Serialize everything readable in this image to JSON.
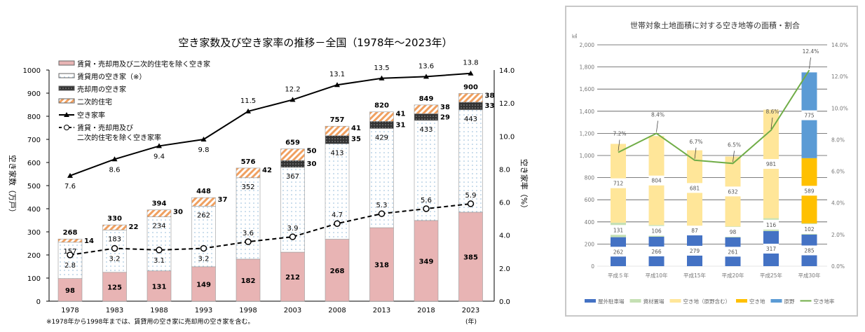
{
  "chart_data": [
    {
      "type": "bar",
      "title": "空き家数及び空き家率の推移－全国（1978年～2023年）",
      "ylabel": "空き家数（万戸）",
      "y2label": "空き家率（%）",
      "xunit": "(年)",
      "footnote": "※1978年から1998年までは、賃貸用の空き家に売却用の空き家を含む。",
      "ylim": [
        0,
        1000
      ],
      "yticks": [
        "0",
        "100",
        "200",
        "300",
        "400",
        "500",
        "600",
        "700",
        "800",
        "900",
        "1000"
      ],
      "y2lim": [
        0,
        14
      ],
      "y2ticks": [
        "0.0",
        "2.0",
        "4.0",
        "6.0",
        "8.0",
        "10.0",
        "12.0",
        "14.0"
      ],
      "categories": [
        "1978",
        "1983",
        "1988",
        "1993",
        "1998",
        "2003",
        "2008",
        "2013",
        "2018",
        "2023"
      ],
      "series": [
        {
          "name": "賃貸・売却用及び二次的住宅を除く空き家",
          "kind": "bar",
          "color": "#e8b4b4",
          "values": [
            98,
            125,
            131,
            149,
            182,
            212,
            268,
            318,
            349,
            385
          ]
        },
        {
          "name": "賃貸用の空き家（※）",
          "kind": "bar",
          "color": "#ffffff",
          "values": [
            157,
            183,
            234,
            262,
            352,
            367,
            413,
            429,
            433,
            443
          ]
        },
        {
          "name": "売却用の空き家",
          "kind": "bar",
          "color": "#444444",
          "values": [
            null,
            null,
            null,
            null,
            null,
            30,
            35,
            31,
            29,
            33
          ]
        },
        {
          "name": "二次的住宅",
          "kind": "bar",
          "color": "#f0a060",
          "values": [
            14,
            22,
            30,
            37,
            42,
            50,
            41,
            41,
            38,
            38
          ]
        },
        {
          "name": "空き家率",
          "kind": "line",
          "axis": "right",
          "values": [
            7.6,
            8.6,
            9.4,
            9.8,
            11.5,
            12.2,
            13.1,
            13.5,
            13.6,
            13.8
          ]
        },
        {
          "name": "賃貸・売却用及び\n二次的住宅を除く空き家率",
          "kind": "line-dashed",
          "axis": "right",
          "values": [
            2.8,
            3.2,
            3.1,
            3.2,
            3.6,
            3.9,
            4.7,
            5.3,
            5.6,
            5.9
          ]
        }
      ],
      "totals": [
        268,
        330,
        394,
        448,
        576,
        659,
        757,
        820,
        849,
        900
      ],
      "legend": "top-left"
    },
    {
      "type": "bar",
      "title": "世帯対象土地面積に対する空き地等の面積・割合",
      "yunit": "㎢",
      "ylim": [
        0,
        2000
      ],
      "yticks": [
        "0",
        "200",
        "400",
        "600",
        "800",
        "1,000",
        "1,200",
        "1,400",
        "1,600",
        "1,800",
        "2,000"
      ],
      "y2lim": [
        0,
        14
      ],
      "y2ticks": [
        "0.0%",
        "2.0%",
        "4.0%",
        "6.0%",
        "8.0%",
        "10.0%",
        "12.0%",
        "14.0%"
      ],
      "categories": [
        "平成５年",
        "平成10年",
        "平成15年",
        "平成20年",
        "平成25年",
        "平成30年"
      ],
      "series": [
        {
          "name": "屋外駐車場",
          "color": "#4472c4",
          "values": [
            262,
            266,
            279,
            261,
            317,
            285
          ]
        },
        {
          "name": "資材置場",
          "color": "#c5e0b4",
          "values": [
            131,
            106,
            87,
            98,
            116,
            102
          ]
        },
        {
          "name": "空き地（原野含む）",
          "color": "#ffe699",
          "values": [
            712,
            804,
            681,
            632,
            981,
            null
          ]
        },
        {
          "name": "空き地",
          "color": "#ffc000",
          "values": [
            null,
            null,
            null,
            null,
            null,
            589
          ]
        },
        {
          "name": "原野",
          "color": "#5b9bd5",
          "values": [
            null,
            null,
            null,
            null,
            null,
            775
          ]
        },
        {
          "name": "空き地率",
          "kind": "line",
          "axis": "right",
          "color": "#70ad47",
          "values": [
            7.2,
            8.4,
            6.7,
            6.5,
            8.6,
            12.4
          ],
          "labels": [
            "7.2%",
            "8.4%",
            "6.7%",
            "6.5%",
            "8.6%",
            "12.4%"
          ]
        }
      ],
      "legend": "bottom"
    }
  ]
}
